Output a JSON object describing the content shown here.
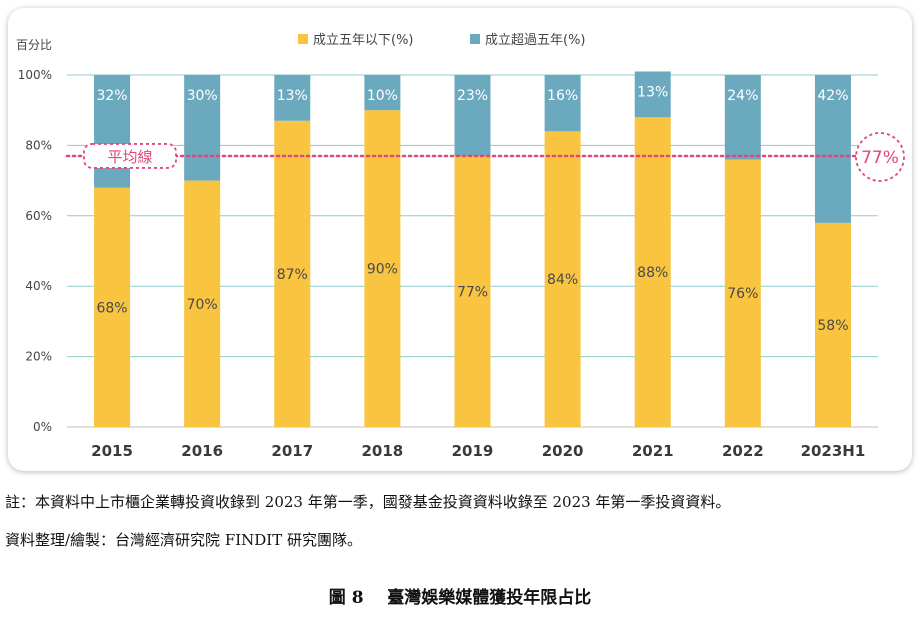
{
  "chart_data": {
    "type": "bar",
    "stacked": true,
    "y_unit_label": "百分比",
    "categories": [
      "2015",
      "2016",
      "2017",
      "2018",
      "2019",
      "2020",
      "2021",
      "2022",
      "2023H1"
    ],
    "series": [
      {
        "name": "成立五年以下(%)",
        "color": "#F9C440",
        "label_color": "#4a4a4a",
        "values": [
          68,
          70,
          87,
          90,
          77,
          84,
          88,
          76,
          58
        ],
        "labels": [
          "68%",
          "70%",
          "87%",
          "90%",
          "77%",
          "84%",
          "88%",
          "76%",
          "58%"
        ]
      },
      {
        "name": "成立超過五年(%)",
        "color": "#6BA9BF",
        "label_color": "#ffffff",
        "values": [
          32,
          30,
          13,
          10,
          23,
          16,
          13,
          24,
          42
        ],
        "labels": [
          "32%",
          "30%",
          "13%",
          "10%",
          "23%",
          "16%",
          "13%",
          "24%",
          "42%"
        ]
      }
    ],
    "ylim": [
      0,
      100
    ],
    "yticks": [
      0,
      20,
      40,
      60,
      80,
      100
    ],
    "ytick_labels": [
      "0%",
      "20%",
      "40%",
      "60%",
      "80%",
      "100%"
    ],
    "grid": true,
    "grid_color": "#8CCBCB",
    "legend_position": "top-center",
    "average_line": {
      "label": "平均線",
      "value": 77,
      "value_label": "77%",
      "color": "#E0467C"
    }
  },
  "notes": [
    "註：本資料中上市櫃企業轉投資收錄到 2023 年第一季，國發基金投資資料收錄至 2023 年第一季投資資料。",
    "資料整理/繪製：台灣經濟研究院 FINDIT 研究團隊。"
  ],
  "caption": "圖 8    臺灣娛樂媒體獲投年限占比"
}
